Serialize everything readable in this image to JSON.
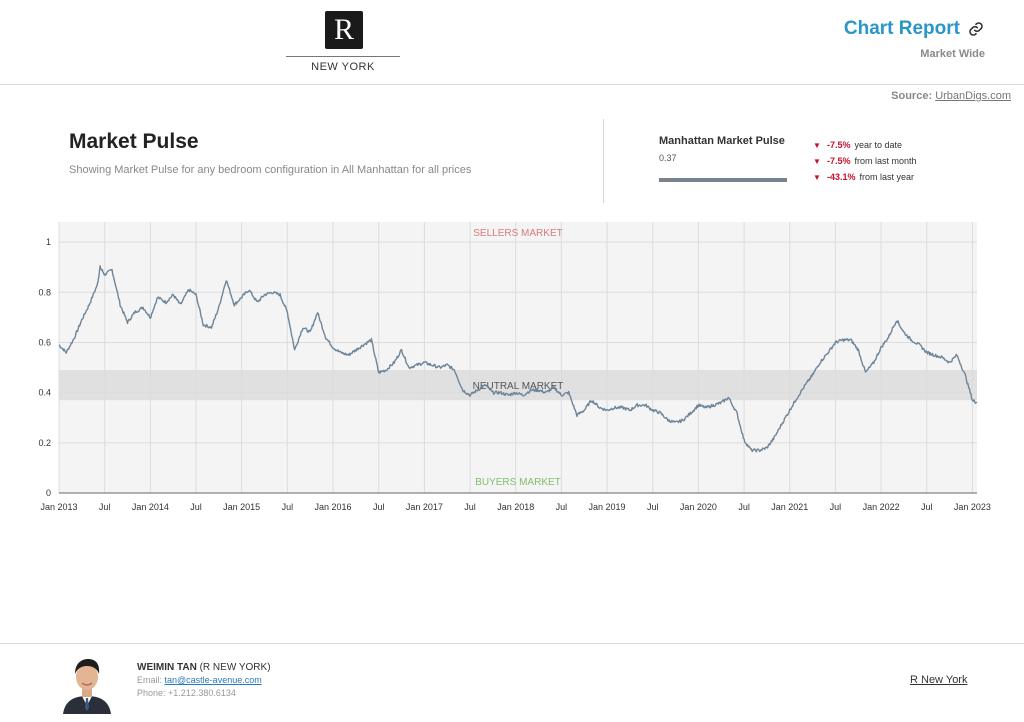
{
  "header": {
    "logo_letter": "R",
    "logo_city": "NEW YORK",
    "report_title": "Chart Report",
    "report_subtitle": "Market Wide",
    "source_label": "Source:",
    "source_link": "UrbanDigs.com"
  },
  "summary": {
    "title": "Market Pulse",
    "description": "Showing Market Pulse for any bedroom configuration in All Manhattan for all prices",
    "pulse_label": "Manhattan Market Pulse",
    "pulse_value": "0.37",
    "changes": [
      {
        "value": "-7.5%",
        "text": "year to date"
      },
      {
        "value": "-7.5%",
        "text": "from last month"
      },
      {
        "value": "-43.1%",
        "text": "from last year"
      }
    ]
  },
  "chart_data": {
    "type": "line",
    "ylim": [
      0,
      1.08
    ],
    "yticks": [
      "0",
      "0.2",
      "0.4",
      "0.6",
      "0.8",
      "1"
    ],
    "ytick_values": [
      0,
      0.2,
      0.4,
      0.6,
      0.8,
      1
    ],
    "xticks": [
      "Jan 2013",
      "Jul",
      "Jan 2014",
      "Jul",
      "Jan 2015",
      "Jul",
      "Jan 2016",
      "Jul",
      "Jan 2017",
      "Jul",
      "Jan 2018",
      "Jul",
      "Jan 2019",
      "Jul",
      "Jan 2020",
      "Jul",
      "Jan 2021",
      "Jul",
      "Jan 2022",
      "Jul",
      "Jan 2023"
    ],
    "xtick_values": [
      2013.0,
      2013.5,
      2014.0,
      2014.5,
      2015.0,
      2015.5,
      2016.0,
      2016.5,
      2017.0,
      2017.5,
      2018.0,
      2018.5,
      2019.0,
      2019.5,
      2020.0,
      2020.5,
      2021.0,
      2021.5,
      2022.0,
      2022.5,
      2023.0
    ],
    "xlim": [
      2013.0,
      2023.05
    ],
    "neutral_band": [
      0.37,
      0.49
    ],
    "zone_labels": {
      "sellers": "SELLERS MARKET",
      "neutral": "NEUTRAL MARKET",
      "buyers": "BUYERS MARKET"
    },
    "colors": {
      "line": "#6e8599",
      "plot_bg": "#f4f4f4",
      "band": "#e0e0e0",
      "grid": "#dcdcdc",
      "sellers": "#d97a7a",
      "buyers": "#7fbf6a",
      "neutral": "#555555"
    },
    "series": [
      {
        "x": [
          2013.0,
          2013.08,
          2013.17,
          2013.25,
          2013.33,
          2013.42,
          2013.45,
          2013.5,
          2013.58,
          2013.67,
          2013.75,
          2013.83,
          2013.92,
          2014.0,
          2014.08,
          2014.17,
          2014.25,
          2014.33,
          2014.42,
          2014.5,
          2014.58,
          2014.67,
          2014.75,
          2014.83,
          2014.92,
          2015.0,
          2015.08,
          2015.17,
          2015.25,
          2015.33,
          2015.42,
          2015.5,
          2015.58,
          2015.67,
          2015.75,
          2015.83,
          2015.92,
          2016.0,
          2016.08,
          2016.17,
          2016.25,
          2016.33,
          2016.42,
          2016.5,
          2016.58,
          2016.67,
          2016.75,
          2016.83,
          2016.92,
          2017.0,
          2017.08,
          2017.17,
          2017.25,
          2017.33,
          2017.42,
          2017.5,
          2017.58,
          2017.67,
          2017.75,
          2017.83,
          2017.92,
          2018.0,
          2018.08,
          2018.17,
          2018.25,
          2018.33,
          2018.42,
          2018.5,
          2018.58,
          2018.67,
          2018.75,
          2018.83,
          2018.92,
          2019.0,
          2019.08,
          2019.17,
          2019.25,
          2019.33,
          2019.42,
          2019.5,
          2019.58,
          2019.67,
          2019.75,
          2019.83,
          2019.92,
          2020.0,
          2020.08,
          2020.17,
          2020.25,
          2020.33,
          2020.42,
          2020.5,
          2020.58,
          2020.67,
          2020.75,
          2020.83,
          2020.92,
          2021.0,
          2021.08,
          2021.17,
          2021.25,
          2021.33,
          2021.42,
          2021.5,
          2021.58,
          2021.67,
          2021.75,
          2021.83,
          2021.92,
          2022.0,
          2022.08,
          2022.17,
          2022.25,
          2022.33,
          2022.42,
          2022.5,
          2022.58,
          2022.67,
          2022.75,
          2022.83,
          2022.92,
          2023.0,
          2023.05
        ],
        "y": [
          0.59,
          0.56,
          0.62,
          0.69,
          0.75,
          0.83,
          0.9,
          0.87,
          0.89,
          0.75,
          0.68,
          0.72,
          0.74,
          0.7,
          0.78,
          0.76,
          0.79,
          0.75,
          0.81,
          0.79,
          0.67,
          0.66,
          0.74,
          0.85,
          0.75,
          0.78,
          0.81,
          0.76,
          0.79,
          0.8,
          0.79,
          0.72,
          0.57,
          0.66,
          0.64,
          0.72,
          0.62,
          0.58,
          0.56,
          0.55,
          0.57,
          0.59,
          0.61,
          0.48,
          0.49,
          0.52,
          0.57,
          0.5,
          0.51,
          0.52,
          0.51,
          0.5,
          0.51,
          0.49,
          0.41,
          0.39,
          0.41,
          0.43,
          0.4,
          0.4,
          0.39,
          0.4,
          0.39,
          0.41,
          0.41,
          0.4,
          0.42,
          0.39,
          0.4,
          0.31,
          0.33,
          0.37,
          0.34,
          0.33,
          0.34,
          0.34,
          0.33,
          0.35,
          0.35,
          0.33,
          0.32,
          0.29,
          0.28,
          0.29,
          0.32,
          0.35,
          0.34,
          0.35,
          0.36,
          0.38,
          0.32,
          0.21,
          0.17,
          0.17,
          0.18,
          0.22,
          0.28,
          0.33,
          0.38,
          0.43,
          0.47,
          0.52,
          0.56,
          0.6,
          0.61,
          0.61,
          0.57,
          0.48,
          0.52,
          0.58,
          0.62,
          0.69,
          0.64,
          0.61,
          0.59,
          0.56,
          0.55,
          0.54,
          0.52,
          0.55,
          0.47,
          0.37,
          0.36
        ]
      }
    ]
  },
  "footer": {
    "agent_name": "WEIMIN TAN",
    "agency_short": "(R NEW YORK)",
    "email_label": "Email:",
    "email": "tan@castle-avenue.com",
    "phone_label": "Phone:",
    "phone": "+1.212.380.6134",
    "agency_link": "R New York"
  }
}
